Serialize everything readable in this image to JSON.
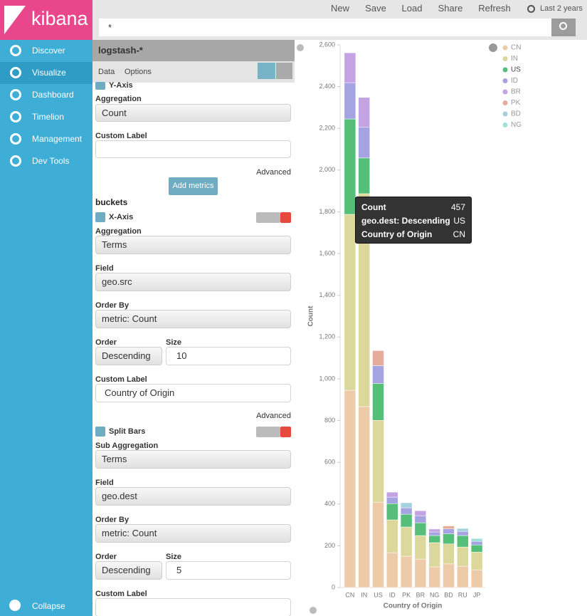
{
  "sidebar": {
    "logo": "kibana",
    "nav": [
      "Discover",
      "Visualize",
      "Dashboard",
      "Timelion",
      "Management",
      "Dev Tools"
    ],
    "active": 1,
    "collapse": "Collapse"
  },
  "toolbar": {
    "actions": [
      "New",
      "Save",
      "Load",
      "Share",
      "Refresh"
    ],
    "time": "Last 2 years"
  },
  "search": {
    "query": "*"
  },
  "editor": {
    "index": "logstash-*",
    "tabs": [
      "Data",
      "Options"
    ],
    "metric": {
      "title": "Y-Axis",
      "aggregation_label": "Aggregation",
      "aggregation": "Count",
      "custom_label_label": "Custom Label",
      "advanced": "Advanced",
      "add": "Add metrics"
    },
    "buckets_title": "buckets",
    "buckets": [
      {
        "title": "X-Axis",
        "aggregation_label": "Aggregation",
        "aggregation": "Terms",
        "field_label": "Field",
        "field": "geo.src",
        "order_by_label": "Order By",
        "order_by": "metric: Count",
        "order_label": "Order",
        "order": "Descending",
        "size_label": "Size",
        "size": 10,
        "custom_label_label": "Custom Label",
        "custom_label": "Country of Origin",
        "advanced": "Advanced"
      },
      {
        "title": "Split Bars",
        "aggregation_label": "Sub Aggregation",
        "aggregation": "Terms",
        "field_label": "Field",
        "field": "geo.dest",
        "order_by_label": "Order By",
        "order_by": "metric: Count",
        "order_label": "Order",
        "order": "Descending",
        "size_label": "Size",
        "size": 5,
        "custom_label_label": "Custom Label"
      }
    ]
  },
  "chart_data": {
    "type": "stacked-bar",
    "xlabel": "Country of Origin",
    "ylabel": "Count",
    "categories": [
      "CN",
      "IN",
      "US",
      "ID",
      "PK",
      "BR",
      "NG",
      "BD",
      "RU",
      "JP"
    ],
    "series": [
      {
        "name": "CN",
        "color": "#eecba8",
        "values": [
          945,
          867,
          409,
          167,
          150,
          136,
          99,
          113,
          102,
          85
        ]
      },
      {
        "name": "IN",
        "color": "#dcd89c",
        "values": [
          843,
          1020,
          392,
          157,
          140,
          113,
          116,
          96,
          92,
          85
        ]
      },
      {
        "name": "US",
        "color": "#55bf7a",
        "values": [
          457,
          171,
          177,
          78,
          61,
          61,
          34,
          48,
          55,
          34
        ]
      },
      {
        "name": "ID",
        "color": "#a6a3e3",
        "values": [
          174,
          147,
          85,
          31,
          31,
          34,
          17,
          24,
          20,
          17
        ]
      },
      {
        "name": "BR",
        "color": "#c4a3e2",
        "values": [
          143,
          143,
          null,
          24,
          null,
          24,
          14,
          null,
          null,
          null
        ]
      },
      {
        "name": "PK",
        "color": "#e6ab9b",
        "values": [
          null,
          null,
          72,
          null,
          null,
          null,
          null,
          14,
          null,
          null
        ]
      },
      {
        "name": "BD",
        "color": "#a5d1de",
        "values": [
          null,
          null,
          null,
          null,
          24,
          null,
          null,
          null,
          14,
          null
        ]
      },
      {
        "name": "NG",
        "color": "#a2e0da",
        "values": [
          null,
          null,
          null,
          null,
          null,
          null,
          null,
          null,
          null,
          14
        ]
      }
    ],
    "ylim": [
      0,
      2600
    ],
    "yticks": [
      0,
      200,
      400,
      600,
      800,
      {
        "value": 1000,
        "label": "1,000"
      },
      {
        "value": 1200,
        "label": "1,200"
      },
      {
        "value": 1400,
        "label": "1,400"
      },
      {
        "value": 1600,
        "label": "1,600"
      },
      {
        "value": 1800,
        "label": "1,800"
      },
      {
        "value": 2000,
        "label": "2,000"
      },
      {
        "value": 2200,
        "label": "2,200"
      },
      {
        "value": 2400,
        "label": "2,400"
      },
      {
        "value": 2600,
        "label": "2,600"
      }
    ],
    "legend": "top-right"
  },
  "tooltip": {
    "rows": [
      {
        "label": "Count",
        "value": 457
      },
      {
        "label": "geo.dest: Descending",
        "value": "US"
      },
      {
        "label": "Country of Origin",
        "value": "CN"
      }
    ]
  }
}
